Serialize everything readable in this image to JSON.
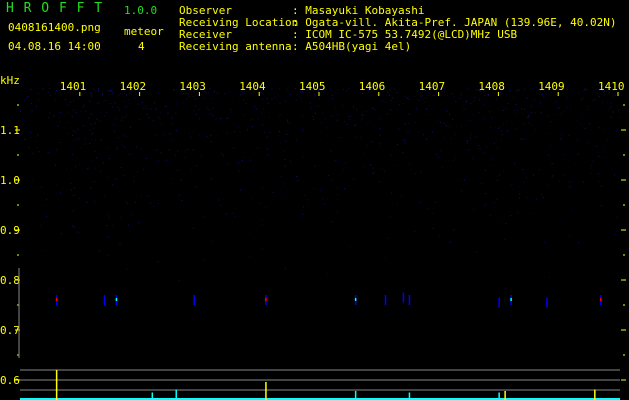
{
  "header": {
    "app_name": "H R O F F T",
    "version": "1.0.0",
    "filename": "0408161400.png",
    "datetime": "04.08.16 14:00",
    "meteor_label": "meteor",
    "meteor_count": "4",
    "info": [
      {
        "label": "Observer",
        "value": ": Masayuki Kobayashi"
      },
      {
        "label": "Receiving Location",
        "value": ": Ogata-vill. Akita-Pref. JAPAN (139.96E, 40.02N)"
      },
      {
        "label": "Receiver",
        "value": ": ICOM IC-575 53.7492(@LCD)MHz USB"
      },
      {
        "label": "Receiving antenna",
        "value": ": A504HB(yagi 4el)"
      }
    ]
  },
  "colors": {
    "text": "#ffff00",
    "title": "#22dd22",
    "echo_weak": "#0000ff",
    "echo_mid": "#00ffff",
    "echo_strong": "#ff0000",
    "bar": "#00ffff",
    "bar_meteor": "#ffff00"
  },
  "chart_data": {
    "type": "heatmap",
    "ylabel": "kHz",
    "x_ticks": [
      "1401",
      "1402",
      "1403",
      "1404",
      "1405",
      "1406",
      "1407",
      "1408",
      "1409",
      "1410"
    ],
    "y_ticks": [
      "1.1",
      "1.0",
      "0.9",
      "0.8",
      "0.7",
      "0.6"
    ],
    "x_range": [
      1400.0,
      1410.0
    ],
    "y_range": [
      0.56,
      1.2
    ],
    "echoes": [
      {
        "time": 1400.6,
        "freq": 0.76,
        "strength": "strong"
      },
      {
        "time": 1401.4,
        "freq": 0.76,
        "strength": "weak"
      },
      {
        "time": 1401.6,
        "freq": 0.76,
        "strength": "mid"
      },
      {
        "time": 1402.9,
        "freq": 0.76,
        "strength": "weak"
      },
      {
        "time": 1404.1,
        "freq": 0.76,
        "strength": "strong"
      },
      {
        "time": 1405.6,
        "freq": 0.76,
        "strength": "mid"
      },
      {
        "time": 1406.1,
        "freq": 0.76,
        "strength": "weak"
      },
      {
        "time": 1406.4,
        "freq": 0.765,
        "strength": "weak"
      },
      {
        "time": 1406.5,
        "freq": 0.76,
        "strength": "weak"
      },
      {
        "time": 1408.0,
        "freq": 0.755,
        "strength": "weak"
      },
      {
        "time": 1408.2,
        "freq": 0.76,
        "strength": "mid"
      },
      {
        "time": 1408.8,
        "freq": 0.755,
        "strength": "weak"
      },
      {
        "time": 1409.7,
        "freq": 0.76,
        "strength": "strong"
      }
    ],
    "detections": [
      {
        "time": 1400.6,
        "level": 1.0,
        "meteor": true
      },
      {
        "time": 1402.2,
        "level": 0.25,
        "meteor": false
      },
      {
        "time": 1402.6,
        "level": 0.35,
        "meteor": false
      },
      {
        "time": 1404.1,
        "level": 0.6,
        "meteor": true
      },
      {
        "time": 1405.6,
        "level": 0.3,
        "meteor": false
      },
      {
        "time": 1406.5,
        "level": 0.25,
        "meteor": false
      },
      {
        "time": 1408.0,
        "level": 0.25,
        "meteor": false
      },
      {
        "time": 1408.1,
        "level": 0.3,
        "meteor": true
      },
      {
        "time": 1409.6,
        "level": 0.35,
        "meteor": true
      }
    ]
  }
}
